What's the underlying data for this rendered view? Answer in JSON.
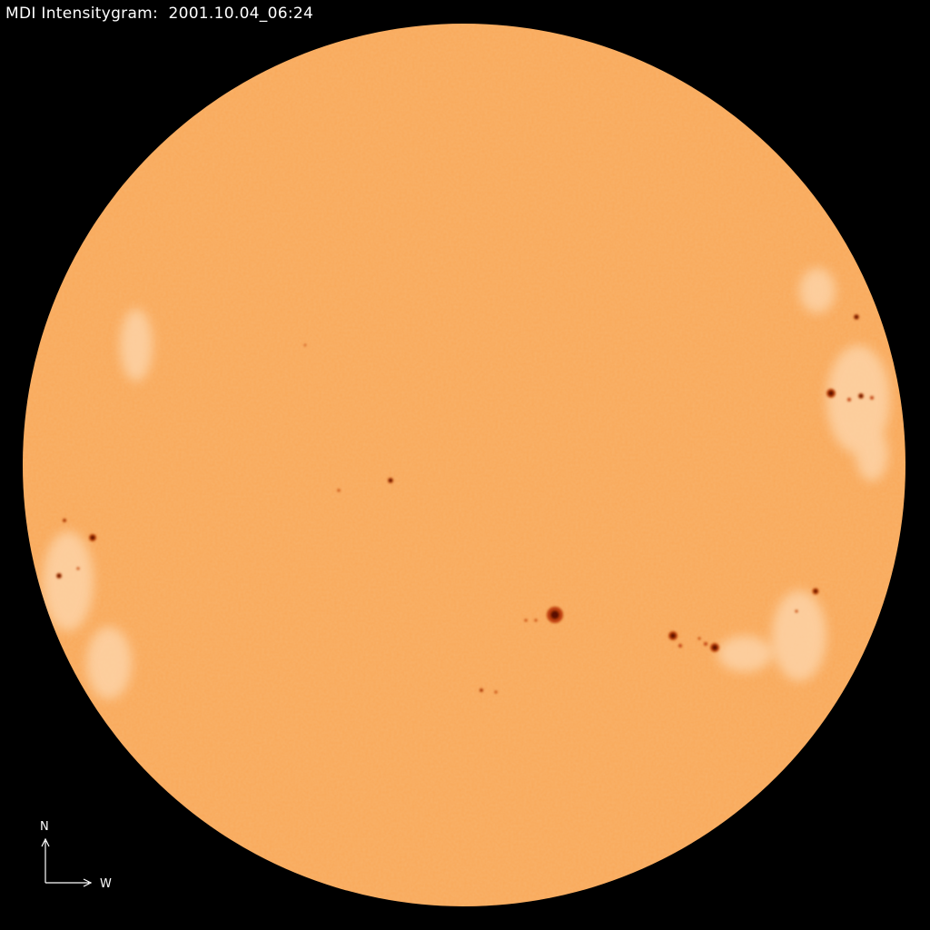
{
  "title": "MDI Intensitygram:  2001.10.04_06:24",
  "compass": {
    "north": "N",
    "west": "W"
  },
  "colors": {
    "background": "#000000",
    "disk": "#f9aa5c",
    "umbra": "#5a0a00",
    "penumbra": "#c0400a",
    "faculae": "#fcd3a8"
  }
}
